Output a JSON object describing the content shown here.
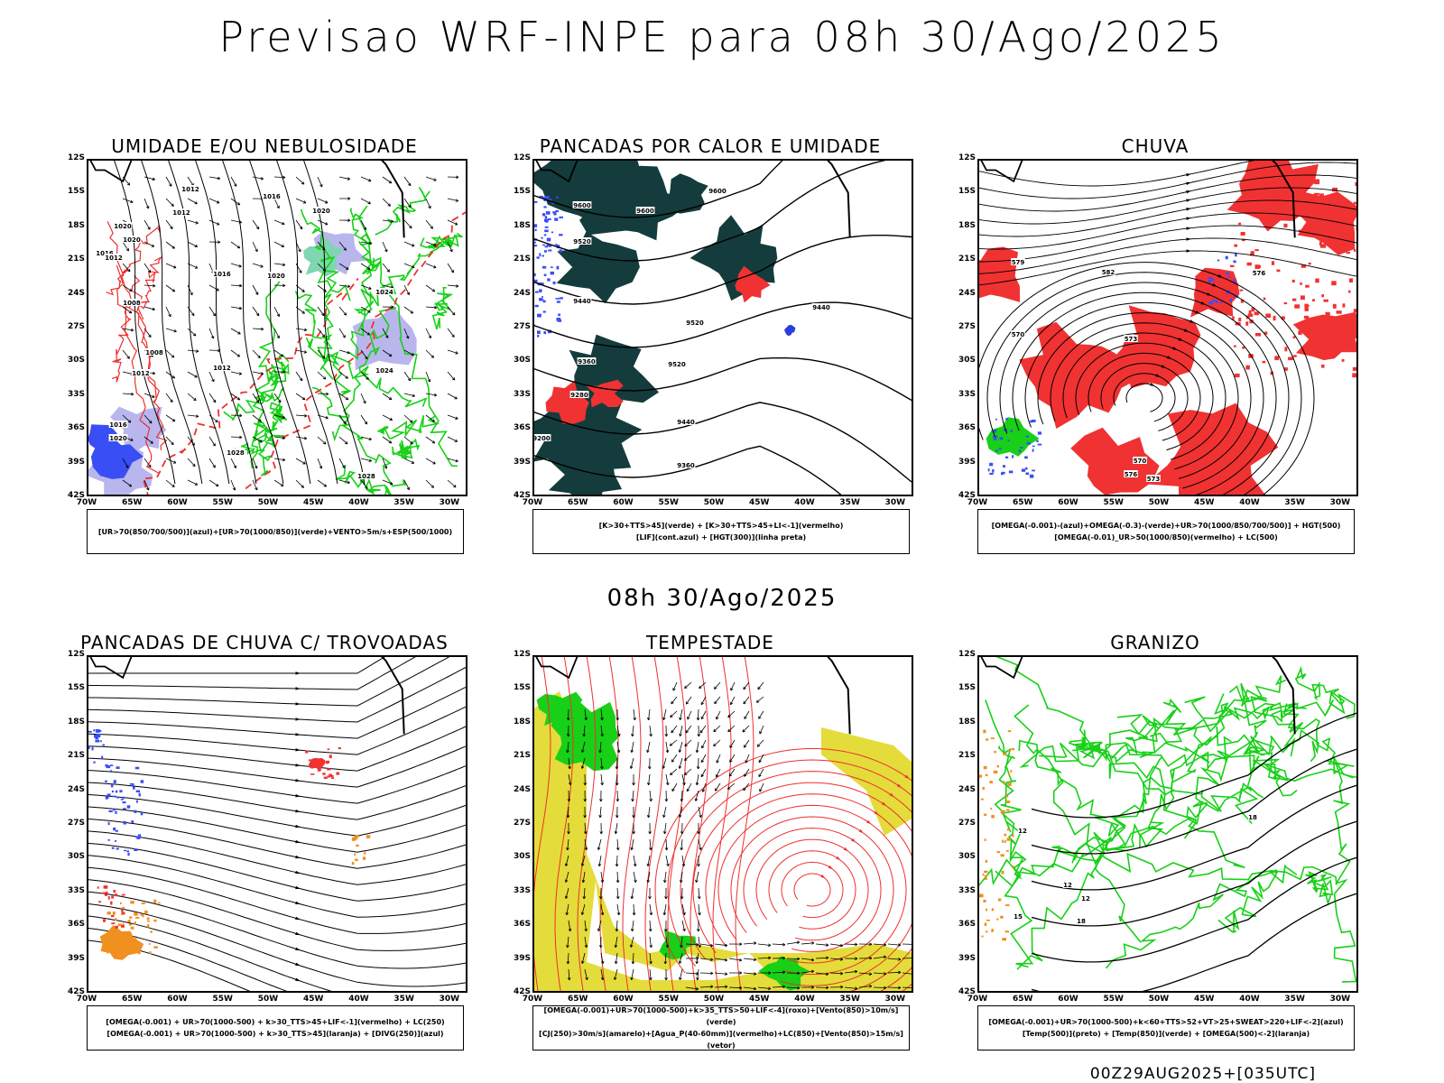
{
  "title": "Previsao WRF-INPE  para 08h 30/Ago/2025",
  "subtitle": "08h 30/Ago/2025",
  "footer": "00Z29AUG2025+[035UTC]",
  "lat_labels": [
    "12S",
    "15S",
    "18S",
    "21S",
    "24S",
    "27S",
    "30S",
    "33S",
    "36S",
    "39S",
    "42S"
  ],
  "lon_labels": [
    "70W",
    "65W",
    "60W",
    "55W",
    "50W",
    "45W",
    "40W",
    "35W",
    "30W"
  ],
  "panels": [
    {
      "title": "UMIDADE E/OU NEBULOSIDADE",
      "legend": [
        "[UR>70(850/700/500)](azul)+[UR>70(1000/850)](verde)+VENTO>5m/s+ESP(500/1000)"
      ],
      "contour_labels": [
        "1012",
        "1012",
        "1016",
        "1020",
        "1020",
        "1016",
        "1012",
        "1008",
        "1012",
        "1016",
        "1020",
        "1008",
        "1012",
        "1020",
        "1016",
        "1020",
        "1024",
        "1024",
        "1028",
        "1028"
      ]
    },
    {
      "title": "PANCADAS POR CALOR E UMIDADE",
      "legend": [
        "[K>30+TTS>45](verde) + [K>30+TTS>45+LI<-1](vermelho)",
        "[LIF](cont.azul) + [HGT(300)](linha preta)"
      ],
      "contour_labels": [
        "9600",
        "9600",
        "9600",
        "9520",
        "9520",
        "9440",
        "9520",
        "9440",
        "9360",
        "9280",
        "9440",
        "9200",
        "9360"
      ]
    },
    {
      "title": "CHUVA",
      "legend": [
        "[OMEGA(-0.001)-(azul)+OMEGA(-0.3)-(verde)+UR>70(1000/850/700/500)] + HGT(500)",
        "[OMEGA(-0.01)_UR>50(1000/850)(vermelho) + LC(500)"
      ],
      "contour_labels": [
        "579",
        "582",
        "576",
        "573",
        "570",
        "576",
        "573",
        "570"
      ]
    },
    {
      "title": "PANCADAS DE CHUVA C/ TROVOADAS",
      "legend": [
        "[OMEGA(-0.001) + UR>70(1000-500) + k>30_TTS>45+LIF<-1](vermelho) + LC(250)",
        "[OMEGA(-0.001) + UR>70(1000-500) + k>30_TTS>45](laranja) + [DIVG(250)](azul)"
      ],
      "contour_labels": []
    },
    {
      "title": "TEMPESTADE",
      "legend": [
        "[OMEGA(-0.001)+UR>70(1000-500)+k>35_TTS>50+LIF<-4](roxo)+[Vento(850)>10m/s](verde)",
        "[CJ(250)>30m/s](amarelo)+[Agua_P(40-60mm)](vermelho)+LC(850)+[Vento(850)>15m/s](vetor)"
      ],
      "contour_labels": []
    },
    {
      "title": "GRANIZO",
      "legend": [
        "[OMEGA(-0.001)+UR>70(1000-500)+k<60+TTS>52+VT>25+SWEAT>220+LIF<-2](azul)",
        "[Temp(500)](preto) + [Temp(850)](verde) + [OMEGA(500)<-2](laranja)"
      ],
      "contour_labels": [
        "12",
        "18",
        "12",
        "12",
        "15",
        "18"
      ]
    }
  ],
  "colors": {
    "blue": "#3a4ef5",
    "lavender": "#b9b6ee",
    "green": "#18d018",
    "red": "#f03232",
    "darkgreen": "#143c3c",
    "yellow": "#e4dc3a",
    "orange": "#f0901e",
    "contour_red": "#ee3030"
  }
}
